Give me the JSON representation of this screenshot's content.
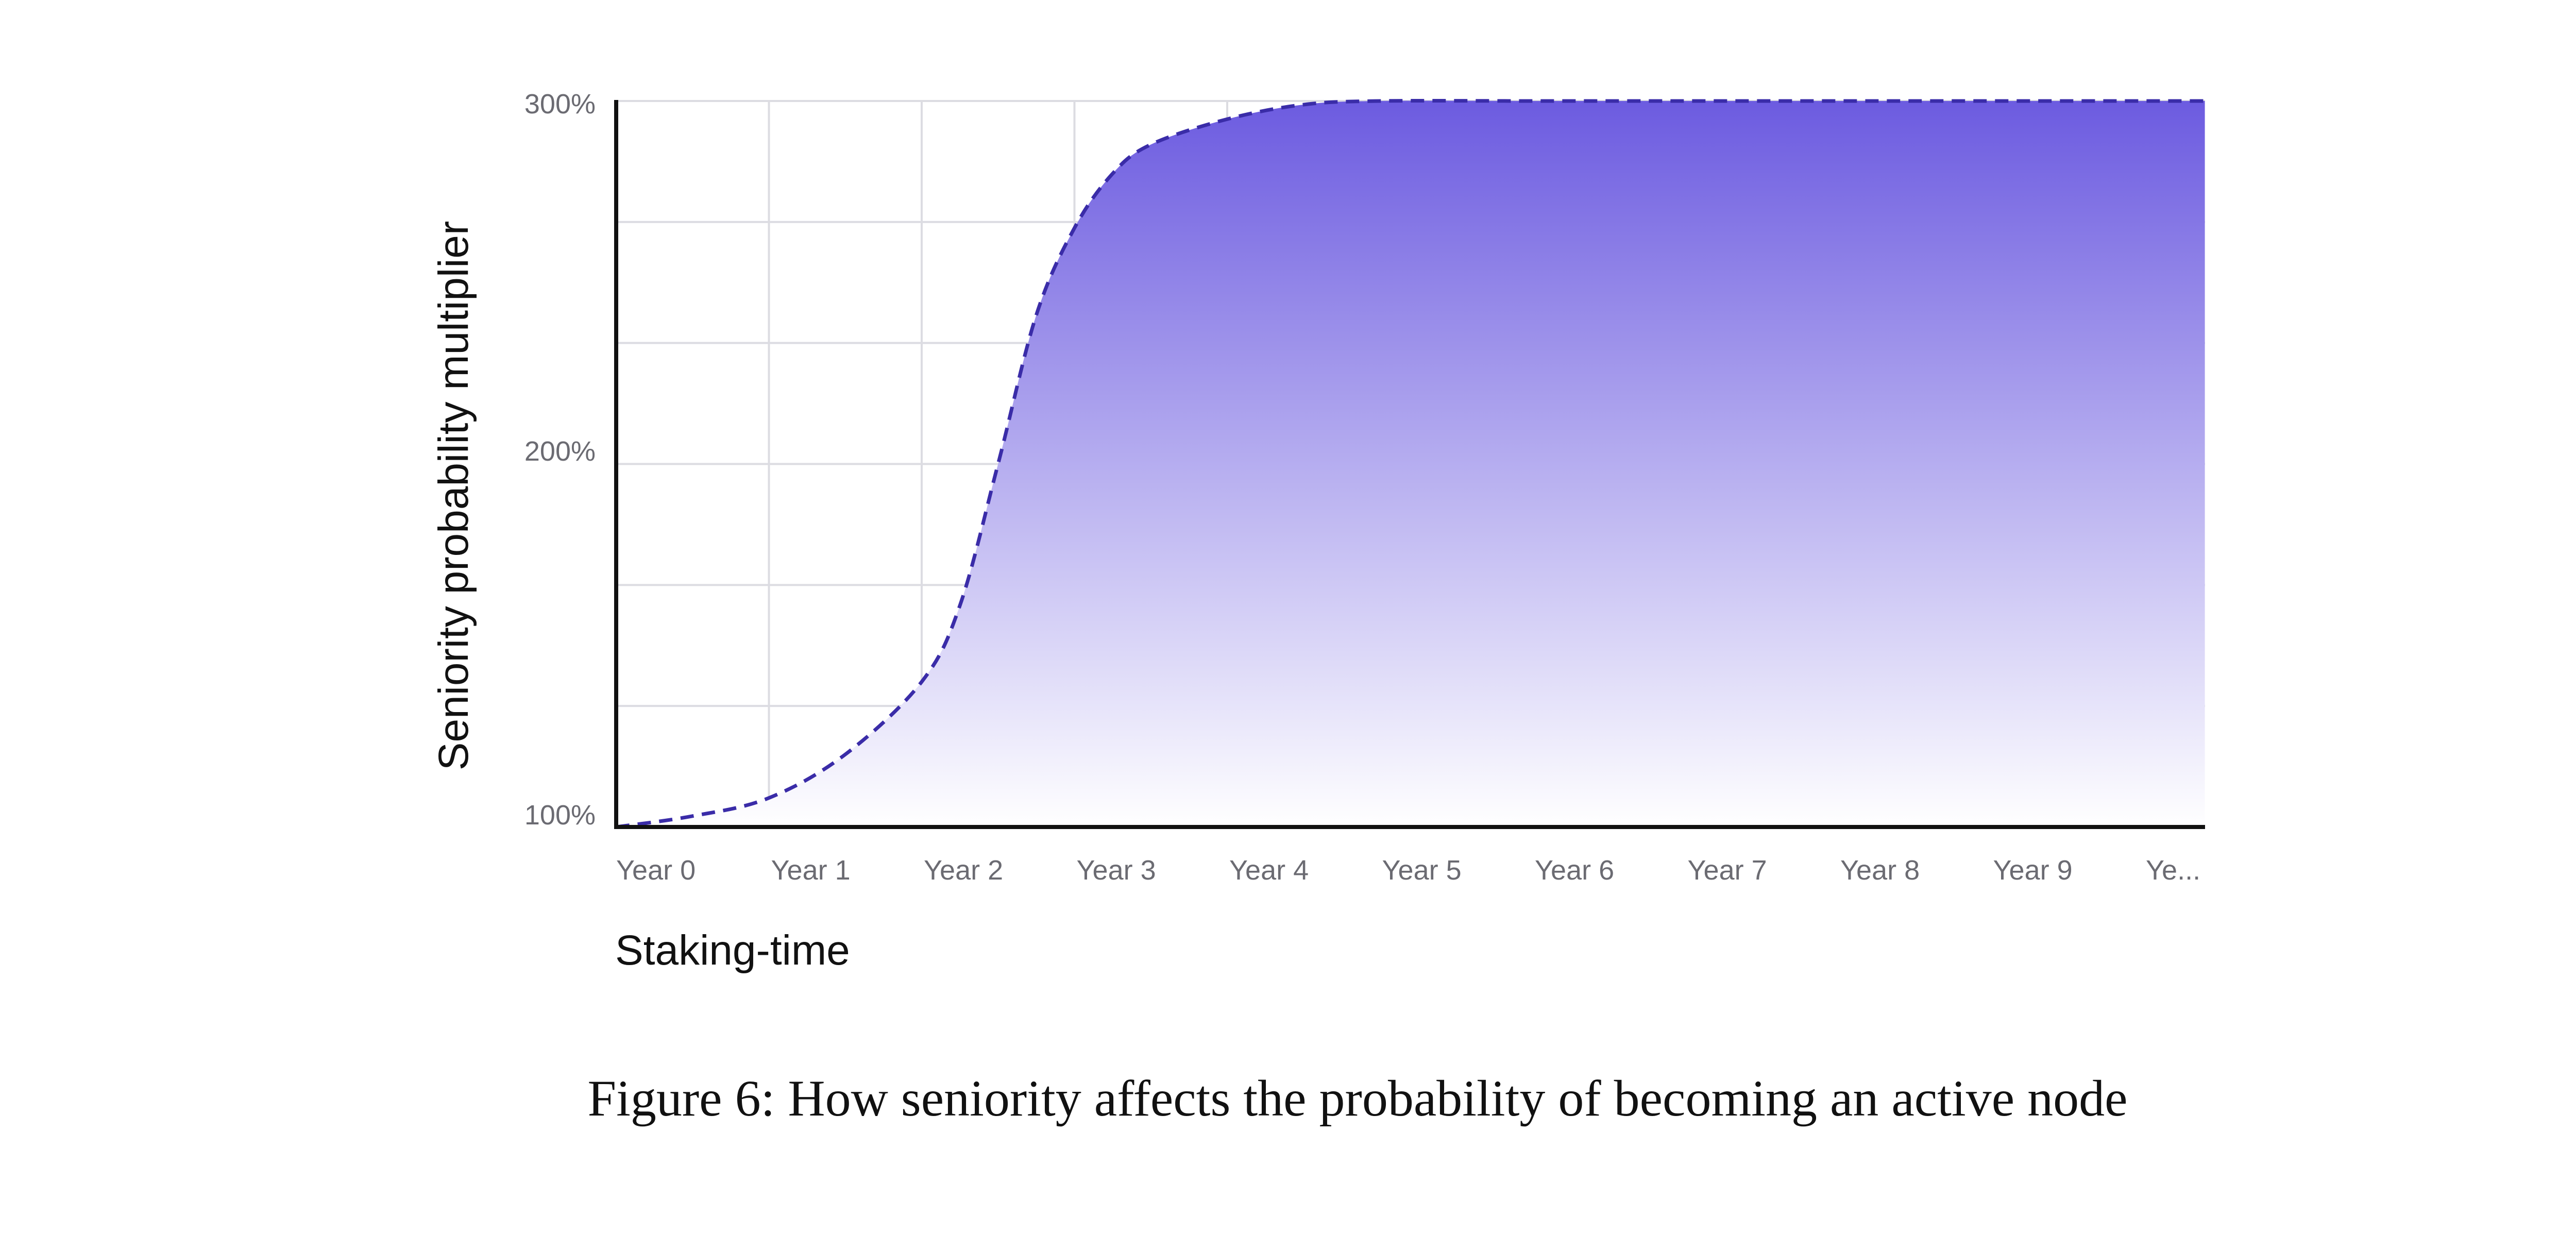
{
  "chart_data": {
    "type": "area",
    "title": "",
    "xlabel": "Staking-time",
    "ylabel": "Seniority probability multiplier",
    "x_categories": [
      "Year 0",
      "Year 1",
      "Year 2",
      "Year 3",
      "Year 4",
      "Year 5",
      "Year 6",
      "Year 7",
      "Year 8",
      "Year 9",
      "Ye..."
    ],
    "y_ticks": [
      "100%",
      "200%",
      "300%"
    ],
    "ylim": [
      100,
      300
    ],
    "grid": true,
    "series": [
      {
        "line_style": "dashed",
        "x": [
          0,
          0.5,
          1,
          1.5,
          2,
          2.25,
          2.5,
          2.75,
          3,
          3.25,
          3.5,
          4,
          4.5,
          5,
          6,
          7,
          8,
          9,
          10.4
        ],
        "y": [
          100,
          103,
          108,
          120,
          140,
          161,
          200,
          241,
          265,
          280,
          288,
          295,
          299,
          300,
          300,
          300,
          300,
          300,
          300
        ]
      }
    ],
    "colors": {
      "line": "#3a2ca8",
      "fill_top": "#6c5be0",
      "fill_bottom": "#ffffff",
      "axis": "#111111",
      "grid": "#dcdce2"
    }
  },
  "caption": "Figure 6: How seniority affects the probability of becoming an active node"
}
